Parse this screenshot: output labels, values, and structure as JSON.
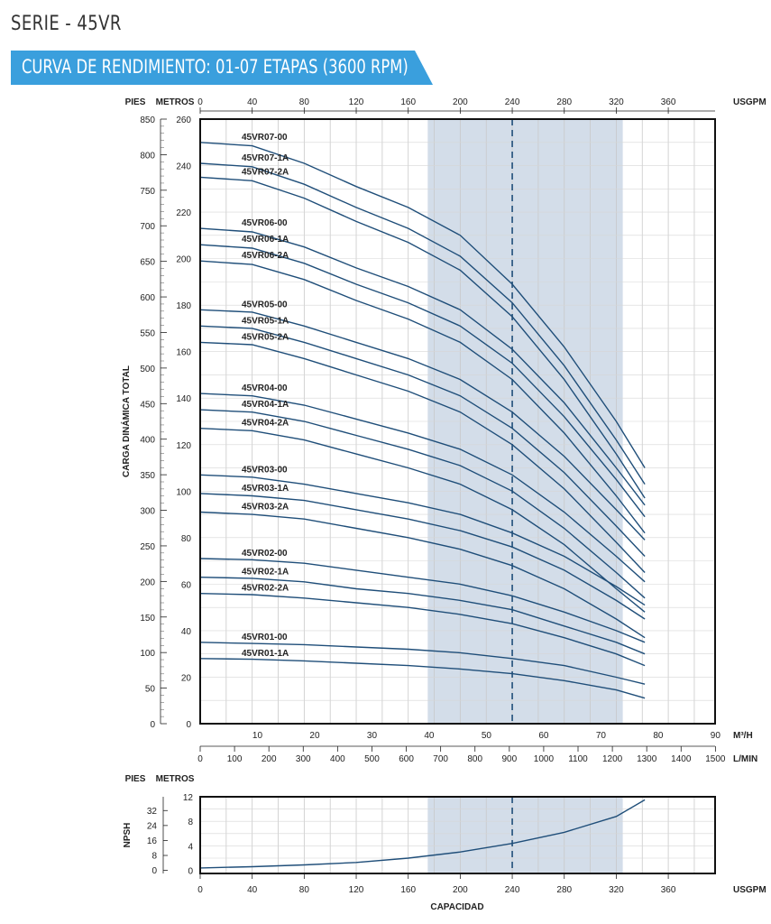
{
  "page": {
    "title": "SERIE - 45VR",
    "banner": "CURVA DE RENDIMIENTO: 01-07 ETAPAS (3600 RPM)",
    "colors": {
      "banner": "#3a9fdd",
      "curve": "#1f4e79",
      "band": "#d3dde9",
      "frame": "#111111"
    }
  },
  "chart_data": [
    {
      "type": "line",
      "title": "",
      "x_unit_top": "USGPM",
      "x_unit_m3h": "M³/H",
      "x_unit_lmin": "L/MIN",
      "y_unit_left": "PIES",
      "y_unit_right": "METROS",
      "ylabel": "CARGA DINÁMICA TOTAL",
      "xlim": [
        0,
        396
      ],
      "ylim_m": [
        0,
        260
      ],
      "ylim_ft": [
        0,
        850
      ],
      "x_ticks_usgpm": [
        0,
        40,
        80,
        120,
        160,
        200,
        240,
        280,
        320,
        360
      ],
      "x_ticks_m3h": [
        10,
        20,
        30,
        40,
        50,
        60,
        70,
        80,
        90
      ],
      "x_ticks_lmin": [
        0,
        100,
        200,
        300,
        400,
        500,
        600,
        700,
        800,
        900,
        1000,
        1100,
        1200,
        1300,
        1400,
        1500
      ],
      "y_ticks_ft": [
        0,
        50,
        100,
        150,
        200,
        250,
        300,
        350,
        400,
        450,
        500,
        550,
        600,
        650,
        700,
        750,
        800,
        850
      ],
      "y_ticks_m": [
        0,
        20,
        40,
        60,
        80,
        100,
        120,
        140,
        160,
        180,
        200,
        220,
        240,
        260
      ],
      "grid": true,
      "recommended_range_usgpm": [
        175,
        325
      ],
      "best_efficiency_usgpm": 240,
      "x": [
        0,
        40,
        80,
        120,
        160,
        200,
        240,
        280,
        320,
        342
      ],
      "series": [
        {
          "name": "45VR07-00",
          "values": [
            250,
            248.5,
            241,
            231,
            222,
            210,
            189,
            162,
            130,
            110
          ]
        },
        {
          "name": "45VR07-1A",
          "values": [
            241,
            239.5,
            232,
            222,
            213,
            201,
            181,
            154,
            122,
            103
          ]
        },
        {
          "name": "45VR07-2A",
          "values": [
            235,
            233.5,
            226,
            216,
            207,
            195,
            175,
            148,
            116,
            97
          ]
        },
        {
          "name": "45VR06-00",
          "values": [
            213,
            211.5,
            205,
            196,
            188,
            178,
            161,
            138,
            110,
            94
          ]
        },
        {
          "name": "45VR06-1A",
          "values": [
            206,
            204.5,
            198,
            189,
            181,
            171,
            155,
            132,
            105,
            89
          ]
        },
        {
          "name": "45VR06-2A",
          "values": [
            199,
            197.5,
            191,
            182,
            174,
            164,
            148,
            125,
            98,
            82
          ]
        },
        {
          "name": "45VR05-00",
          "values": [
            178,
            177,
            171,
            164,
            157,
            148,
            134,
            115,
            92,
            79
          ]
        },
        {
          "name": "45VR05-1A",
          "values": [
            171,
            170,
            164,
            157,
            150,
            141,
            127,
            108,
            85,
            72
          ]
        },
        {
          "name": "45VR05-2A",
          "values": [
            164,
            163,
            157,
            150,
            143,
            134,
            120,
            101,
            78,
            65
          ]
        },
        {
          "name": "45VR04-00",
          "values": [
            142,
            141,
            137,
            131,
            125,
            118,
            107,
            91,
            72,
            61
          ]
        },
        {
          "name": "45VR04-1A",
          "values": [
            135,
            134,
            130,
            124,
            118,
            111,
            100,
            84,
            65,
            54
          ]
        },
        {
          "name": "45VR04-2A",
          "values": [
            127,
            126,
            122,
            116,
            110,
            103,
            92,
            77,
            58,
            48
          ]
        },
        {
          "name": "45VR03-00",
          "values": [
            107,
            106,
            103,
            99,
            95,
            90,
            82,
            72,
            59,
            51
          ]
        },
        {
          "name": "45VR03-1A",
          "values": [
            99,
            98,
            96,
            92,
            88,
            83,
            76,
            66,
            53,
            45
          ]
        },
        {
          "name": "45VR03-2A",
          "values": [
            91,
            90,
            88,
            84,
            80,
            75,
            68,
            58,
            45,
            37
          ]
        },
        {
          "name": "45VR02-00",
          "values": [
            71,
            70.5,
            69,
            66,
            63,
            60,
            55,
            48,
            40,
            35
          ]
        },
        {
          "name": "45VR02-1A",
          "values": [
            63,
            62.5,
            61,
            58,
            56,
            53,
            49,
            42,
            35,
            30
          ]
        },
        {
          "name": "45VR02-2A",
          "values": [
            56,
            55.5,
            54,
            52,
            50,
            47,
            43,
            37,
            30,
            25
          ]
        },
        {
          "name": "45VR01-00",
          "values": [
            35,
            34.5,
            34,
            33,
            32,
            30.5,
            28,
            25,
            20,
            17
          ]
        },
        {
          "name": "45VR01-1A",
          "values": [
            28,
            27.7,
            27,
            26,
            25,
            23.5,
            21.5,
            18.5,
            14.5,
            11
          ]
        }
      ]
    },
    {
      "type": "line",
      "title": "",
      "ylabel": "NPSH",
      "y_unit_left": "PIES",
      "y_unit_right": "METROS",
      "xlabel": "CAPACIDAD",
      "x_unit": "USGPM",
      "xlim": [
        0,
        396
      ],
      "ylim_m": [
        -0.5,
        12
      ],
      "ylim_ft": [
        0,
        39.4
      ],
      "y_ticks_m": [
        0,
        4,
        8,
        12
      ],
      "y_ticks_ft": [
        0,
        8,
        16,
        24,
        32
      ],
      "x_ticks_usgpm": [
        0,
        40,
        80,
        120,
        160,
        200,
        240,
        280,
        320,
        360
      ],
      "grid": true,
      "recommended_range_usgpm": [
        175,
        325
      ],
      "best_efficiency_usgpm": 240,
      "x": [
        0,
        40,
        80,
        120,
        160,
        200,
        240,
        280,
        320,
        342
      ],
      "series": [
        {
          "name": "NPSH",
          "values": [
            0.4,
            0.6,
            0.9,
            1.3,
            2.0,
            3.0,
            4.4,
            6.2,
            8.8,
            11.5
          ]
        }
      ]
    }
  ]
}
